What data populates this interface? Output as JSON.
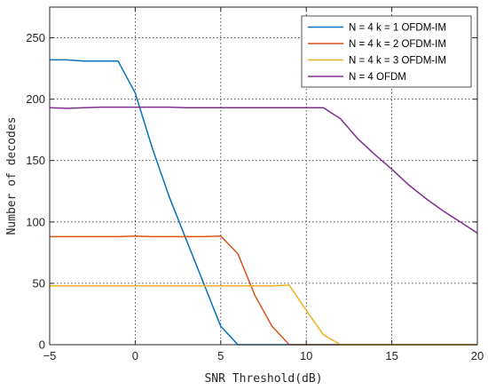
{
  "chart_data": {
    "type": "line",
    "title": "",
    "xlabel": "SNR Threshold(dB)",
    "ylabel": "Number of decodes",
    "xlim": [
      -5,
      20
    ],
    "ylim": [
      0,
      275
    ],
    "x_ticks": [
      -5,
      0,
      5,
      10,
      15,
      20
    ],
    "y_ticks": [
      0,
      50,
      100,
      150,
      200,
      250
    ],
    "x_tick_labels": [
      "−5",
      "0",
      "5",
      "10",
      "15",
      "20"
    ],
    "y_tick_labels": [
      "0",
      "50",
      "100",
      "150",
      "200",
      "250"
    ],
    "grid": true,
    "legend_position": "top-right",
    "series": [
      {
        "name": "N = 4 k = 1 OFDM-IM",
        "color": "#0072BD",
        "x": [
          -5,
          -4,
          -3,
          -2,
          -1,
          0,
          1,
          2,
          3,
          4,
          5,
          6,
          7,
          8,
          9,
          10,
          11,
          12,
          13,
          14,
          15,
          16,
          17,
          18,
          19,
          20
        ],
        "y": [
          232,
          232,
          231,
          231,
          231,
          205,
          160,
          120,
          85,
          50,
          15,
          0,
          0,
          0,
          0,
          0,
          0,
          0,
          0,
          0,
          0,
          0,
          0,
          0,
          0,
          0
        ]
      },
      {
        "name": "N = 4 k = 2 OFDM-IM",
        "color": "#D95319",
        "x": [
          -5,
          -4,
          -3,
          -2,
          -1,
          0,
          1,
          2,
          3,
          4,
          5,
          6,
          7,
          8,
          9,
          10,
          11,
          12,
          13,
          14,
          15,
          16,
          17,
          18,
          19,
          20
        ],
        "y": [
          88,
          88,
          88,
          88,
          88,
          88.5,
          88,
          88,
          88,
          88,
          88.5,
          74,
          40,
          15,
          0,
          0,
          0,
          0,
          0,
          0,
          0,
          0,
          0,
          0,
          0,
          0
        ]
      },
      {
        "name": "N = 4 k = 3 OFDM-IM",
        "color": "#EDB120",
        "x": [
          -5,
          -4,
          -3,
          -2,
          -1,
          0,
          1,
          2,
          3,
          4,
          5,
          6,
          7,
          8,
          9,
          10,
          11,
          12,
          13,
          14,
          15,
          16,
          17,
          18,
          19,
          20
        ],
        "y": [
          48,
          48,
          48,
          48,
          48,
          48,
          48,
          48,
          48,
          48,
          48,
          48,
          48,
          48,
          48.5,
          28,
          8,
          0,
          0,
          0,
          0,
          0,
          0,
          0,
          0,
          0
        ]
      },
      {
        "name": "N = 4 OFDM",
        "color": "#7E2F8E",
        "x": [
          -5,
          -4,
          -3,
          -2,
          -1,
          0,
          1,
          2,
          3,
          4,
          5,
          6,
          7,
          8,
          9,
          10,
          11,
          12,
          13,
          14,
          15,
          16,
          17,
          18,
          19,
          20
        ],
        "y": [
          193,
          192.5,
          193,
          193.5,
          193.5,
          193.5,
          193.5,
          193.5,
          193,
          193,
          193,
          193,
          193,
          193,
          193,
          193,
          193,
          184,
          168,
          155,
          143,
          130,
          119,
          109,
          100,
          91
        ]
      }
    ]
  }
}
